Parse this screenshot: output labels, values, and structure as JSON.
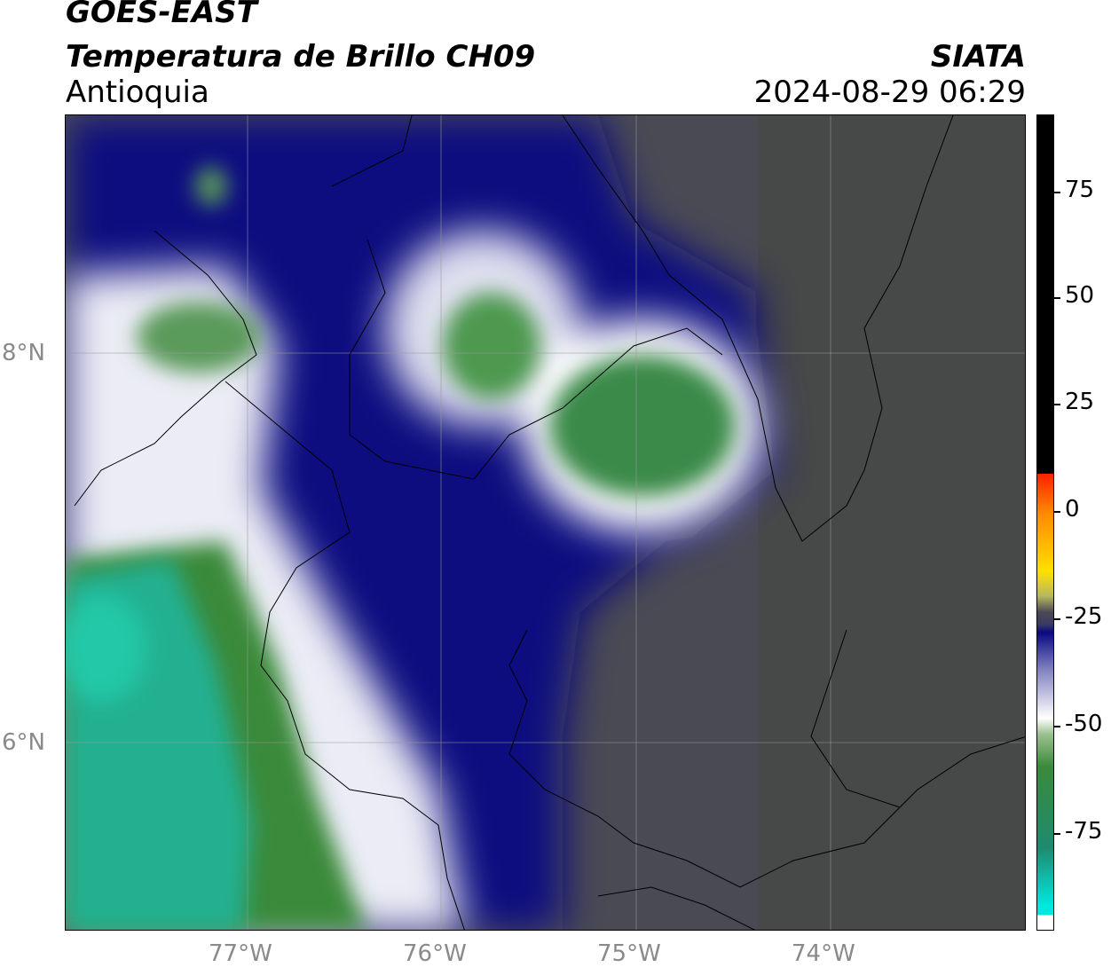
{
  "header": {
    "satellite": "GOES-EAST",
    "product": "Temperatura de Brillo CH09",
    "region": "Antioquia",
    "agency": "SIATA",
    "datetime": "2024-08-29 06:29"
  },
  "map": {
    "lat_labels": [
      "8°N",
      "6°N"
    ],
    "lon_labels": [
      "77°W",
      "76°W",
      "75°W",
      "74°W"
    ]
  },
  "colorbar": {
    "ticks": [
      "75",
      "50",
      "25",
      "0",
      "-25",
      "-50",
      "-75"
    ],
    "colors": {
      "dark_gray": "#4a4a55",
      "navy": "#0a0a80",
      "white": "#ffffff",
      "green": "#3a8a3a",
      "teal": "#20c8a8",
      "cyan": "#00e8e0",
      "yellow": "#ffe000",
      "orange": "#ff8c00",
      "red": "#ff2000",
      "black": "#000000"
    }
  }
}
